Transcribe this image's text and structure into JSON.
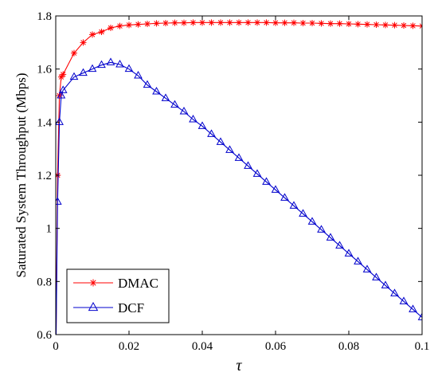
{
  "chart_data": {
    "type": "line",
    "title": "",
    "xlabel": "τ",
    "ylabel": "Saturated System Throughput (Mbps)",
    "xlim": [
      0,
      0.1
    ],
    "ylim": [
      0.6,
      1.8
    ],
    "xticks": [
      0,
      0.02,
      0.04,
      0.06,
      0.08,
      0.1
    ],
    "xtick_labels": [
      "0",
      "0.02",
      "0.04",
      "0.06",
      "0.08",
      "0.1"
    ],
    "yticks": [
      0.6,
      0.8,
      1.0,
      1.2,
      1.4,
      1.6,
      1.8
    ],
    "ytick_labels": [
      "0.6",
      "0.8",
      "1",
      "1.2",
      "1.4",
      "1.6",
      "1.8"
    ],
    "grid": false,
    "legend": {
      "position": "bottom-left"
    },
    "series": [
      {
        "name": "DMAC",
        "color": "#ff0000",
        "marker": "asterisk",
        "points": [
          [
            0.0001,
            0.6
          ],
          [
            0.0005,
            1.2
          ],
          [
            0.001,
            1.5
          ],
          [
            0.0015,
            1.57
          ],
          [
            0.002,
            1.58
          ],
          [
            0.005,
            1.66
          ],
          [
            0.0075,
            1.7
          ],
          [
            0.01,
            1.73
          ],
          [
            0.0125,
            1.74
          ],
          [
            0.015,
            1.755
          ],
          [
            0.0175,
            1.762
          ],
          [
            0.02,
            1.766
          ],
          [
            0.0225,
            1.768
          ],
          [
            0.025,
            1.77
          ],
          [
            0.0275,
            1.772
          ],
          [
            0.03,
            1.773
          ],
          [
            0.0325,
            1.774
          ],
          [
            0.035,
            1.774
          ],
          [
            0.0375,
            1.775
          ],
          [
            0.04,
            1.775
          ],
          [
            0.0425,
            1.775
          ],
          [
            0.045,
            1.775
          ],
          [
            0.0475,
            1.775
          ],
          [
            0.05,
            1.775
          ],
          [
            0.0525,
            1.775
          ],
          [
            0.055,
            1.775
          ],
          [
            0.0575,
            1.775
          ],
          [
            0.06,
            1.774
          ],
          [
            0.0625,
            1.774
          ],
          [
            0.065,
            1.774
          ],
          [
            0.0675,
            1.773
          ],
          [
            0.07,
            1.773
          ],
          [
            0.0725,
            1.772
          ],
          [
            0.075,
            1.771
          ],
          [
            0.0775,
            1.771
          ],
          [
            0.08,
            1.77
          ],
          [
            0.0825,
            1.769
          ],
          [
            0.085,
            1.768
          ],
          [
            0.0875,
            1.767
          ],
          [
            0.09,
            1.766
          ],
          [
            0.0925,
            1.765
          ],
          [
            0.095,
            1.764
          ],
          [
            0.0975,
            1.763
          ],
          [
            0.1,
            1.762
          ]
        ]
      },
      {
        "name": "DCF",
        "color": "#0000cc",
        "marker": "triangle",
        "points": [
          [
            0.0001,
            0.6
          ],
          [
            0.0005,
            1.1
          ],
          [
            0.001,
            1.4
          ],
          [
            0.0015,
            1.5
          ],
          [
            0.002,
            1.52
          ],
          [
            0.005,
            1.57
          ],
          [
            0.0075,
            1.585
          ],
          [
            0.01,
            1.6
          ],
          [
            0.0125,
            1.615
          ],
          [
            0.015,
            1.625
          ],
          [
            0.0175,
            1.617
          ],
          [
            0.02,
            1.6
          ],
          [
            0.0225,
            1.575
          ],
          [
            0.025,
            1.54
          ],
          [
            0.0275,
            1.515
          ],
          [
            0.03,
            1.49
          ],
          [
            0.0325,
            1.465
          ],
          [
            0.035,
            1.44
          ],
          [
            0.0375,
            1.41
          ],
          [
            0.04,
            1.385
          ],
          [
            0.0425,
            1.355
          ],
          [
            0.045,
            1.325
          ],
          [
            0.0475,
            1.295
          ],
          [
            0.05,
            1.265
          ],
          [
            0.0525,
            1.235
          ],
          [
            0.055,
            1.205
          ],
          [
            0.0575,
            1.175
          ],
          [
            0.06,
            1.145
          ],
          [
            0.0625,
            1.115
          ],
          [
            0.065,
            1.085
          ],
          [
            0.0675,
            1.055
          ],
          [
            0.07,
            1.025
          ],
          [
            0.0725,
            0.995
          ],
          [
            0.075,
            0.965
          ],
          [
            0.0775,
            0.935
          ],
          [
            0.08,
            0.905
          ],
          [
            0.0825,
            0.875
          ],
          [
            0.085,
            0.845
          ],
          [
            0.0875,
            0.815
          ],
          [
            0.09,
            0.785
          ],
          [
            0.0925,
            0.755
          ],
          [
            0.095,
            0.725
          ],
          [
            0.0975,
            0.695
          ],
          [
            0.1,
            0.665
          ]
        ]
      }
    ]
  }
}
